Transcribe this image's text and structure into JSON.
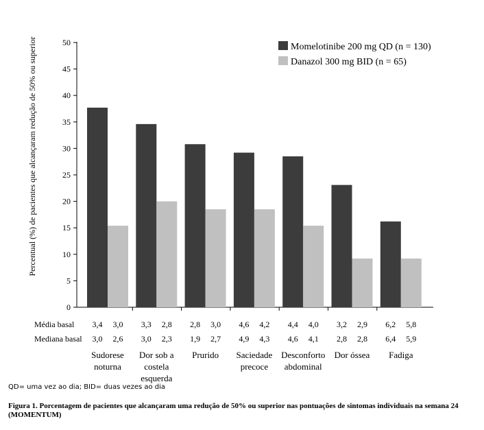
{
  "chart_data": {
    "type": "bar",
    "ylabel": "Percentual (%) de pacientes que alcançaram redução de 50% ou superior",
    "ylim": [
      0,
      50
    ],
    "yticks": [
      0,
      5,
      10,
      15,
      20,
      25,
      30,
      35,
      40,
      45,
      50
    ],
    "legend_position": "top-right",
    "grid": false,
    "categories": [
      [
        "Sudorese",
        "noturna"
      ],
      [
        "Dor sob a",
        "costela",
        "esquerda"
      ],
      [
        "Prurido"
      ],
      [
        "Saciedade",
        "precoce"
      ],
      [
        "Desconforto",
        "abdominal"
      ],
      [
        "Dor óssea"
      ],
      [
        "Fadiga"
      ]
    ],
    "series": [
      {
        "name": "Momelotinibe 200 mg QD (n = 130)",
        "color": "#3c3c3c",
        "values": [
          37.7,
          34.6,
          30.8,
          29.2,
          28.5,
          23.1,
          16.2
        ]
      },
      {
        "name": "Danazol 300 mg BID (n = 65)",
        "color": "#c0c0c0",
        "values": [
          15.4,
          20.0,
          18.5,
          18.5,
          15.4,
          9.2,
          9.2
        ]
      }
    ],
    "baseline_rows": [
      {
        "label": "Média basal",
        "values": [
          [
            "3,4",
            "3,0"
          ],
          [
            "3,3",
            "2,8"
          ],
          [
            "2,8",
            "3,0"
          ],
          [
            "4,6",
            "4,2"
          ],
          [
            "4,4",
            "4,0"
          ],
          [
            "3,2",
            "2,9"
          ],
          [
            "6,2",
            "5,8"
          ]
        ]
      },
      {
        "label": "Mediana basal",
        "values": [
          [
            "3,0",
            "2,6"
          ],
          [
            "3,0",
            "2,3"
          ],
          [
            "1,9",
            "2,7"
          ],
          [
            "4,9",
            "4,3"
          ],
          [
            "4,6",
            "4,1"
          ],
          [
            "2,8",
            "2,8"
          ],
          [
            "6,4",
            "5,9"
          ]
        ]
      }
    ]
  },
  "footnote": "QD= uma vez ao dia; BID= duas vezes ao dia",
  "caption": "Figura 1. Porcentagem de pacientes que alcançaram uma redução de 50% ou superior nas pontuações de sintomas individuais na semana 24 (MOMENTUM)"
}
